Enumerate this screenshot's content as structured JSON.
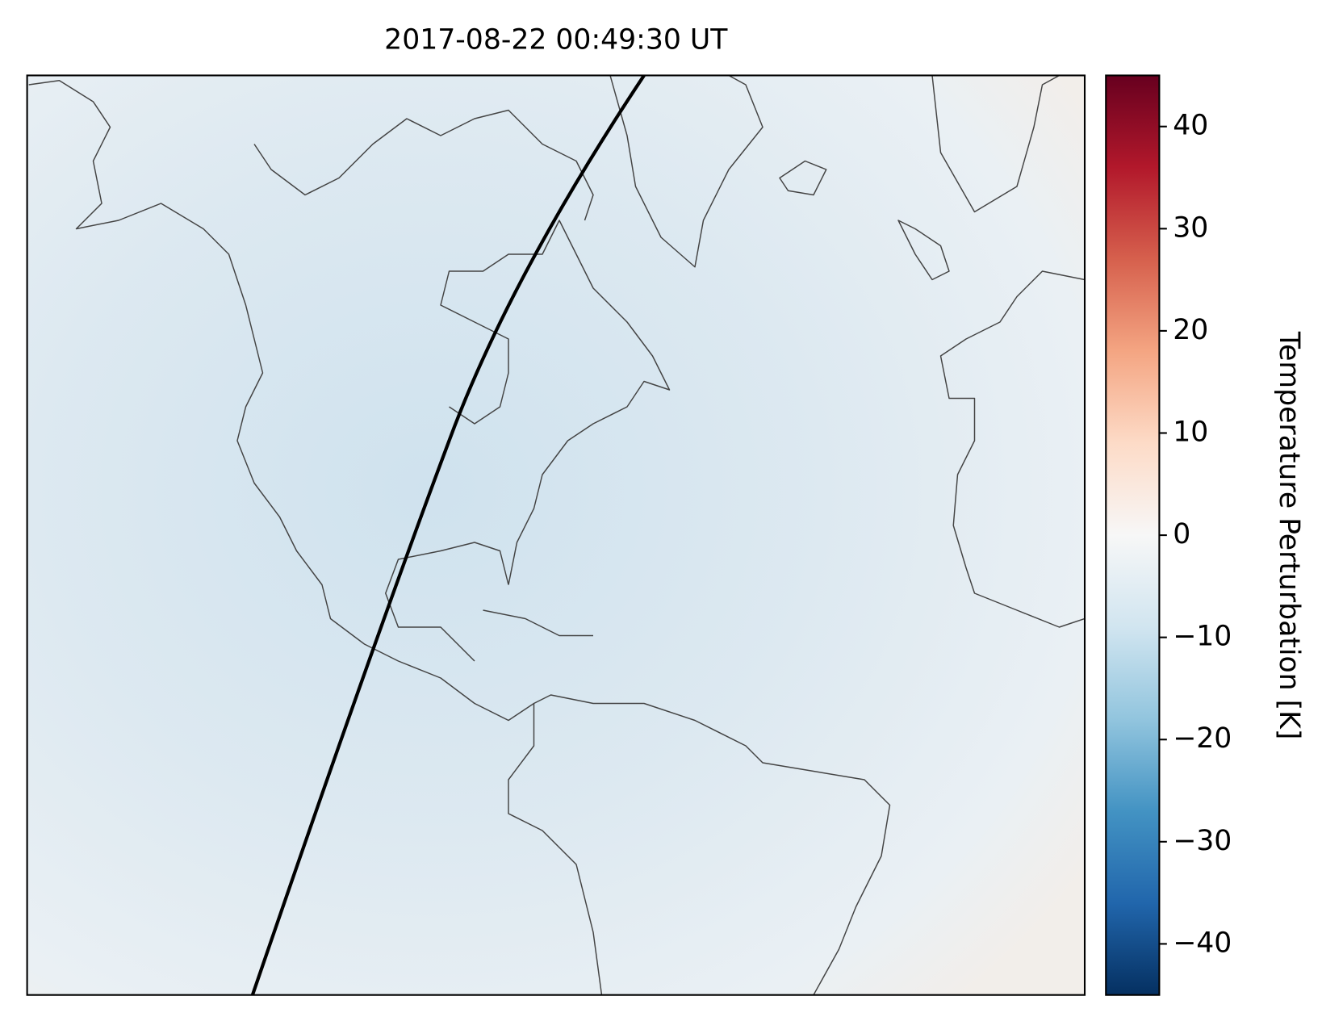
{
  "title": "2017-08-22 00:49:30 UT",
  "colorbar": {
    "label": "Temperature Perturbation [K]",
    "lim": [
      -45,
      45
    ],
    "ticks": [
      {
        "value": -40,
        "label": "−40"
      },
      {
        "value": -30,
        "label": "−30"
      },
      {
        "value": -20,
        "label": "−20"
      },
      {
        "value": -10,
        "label": "−10"
      },
      0,
      10,
      20,
      30,
      40
    ]
  }
}
